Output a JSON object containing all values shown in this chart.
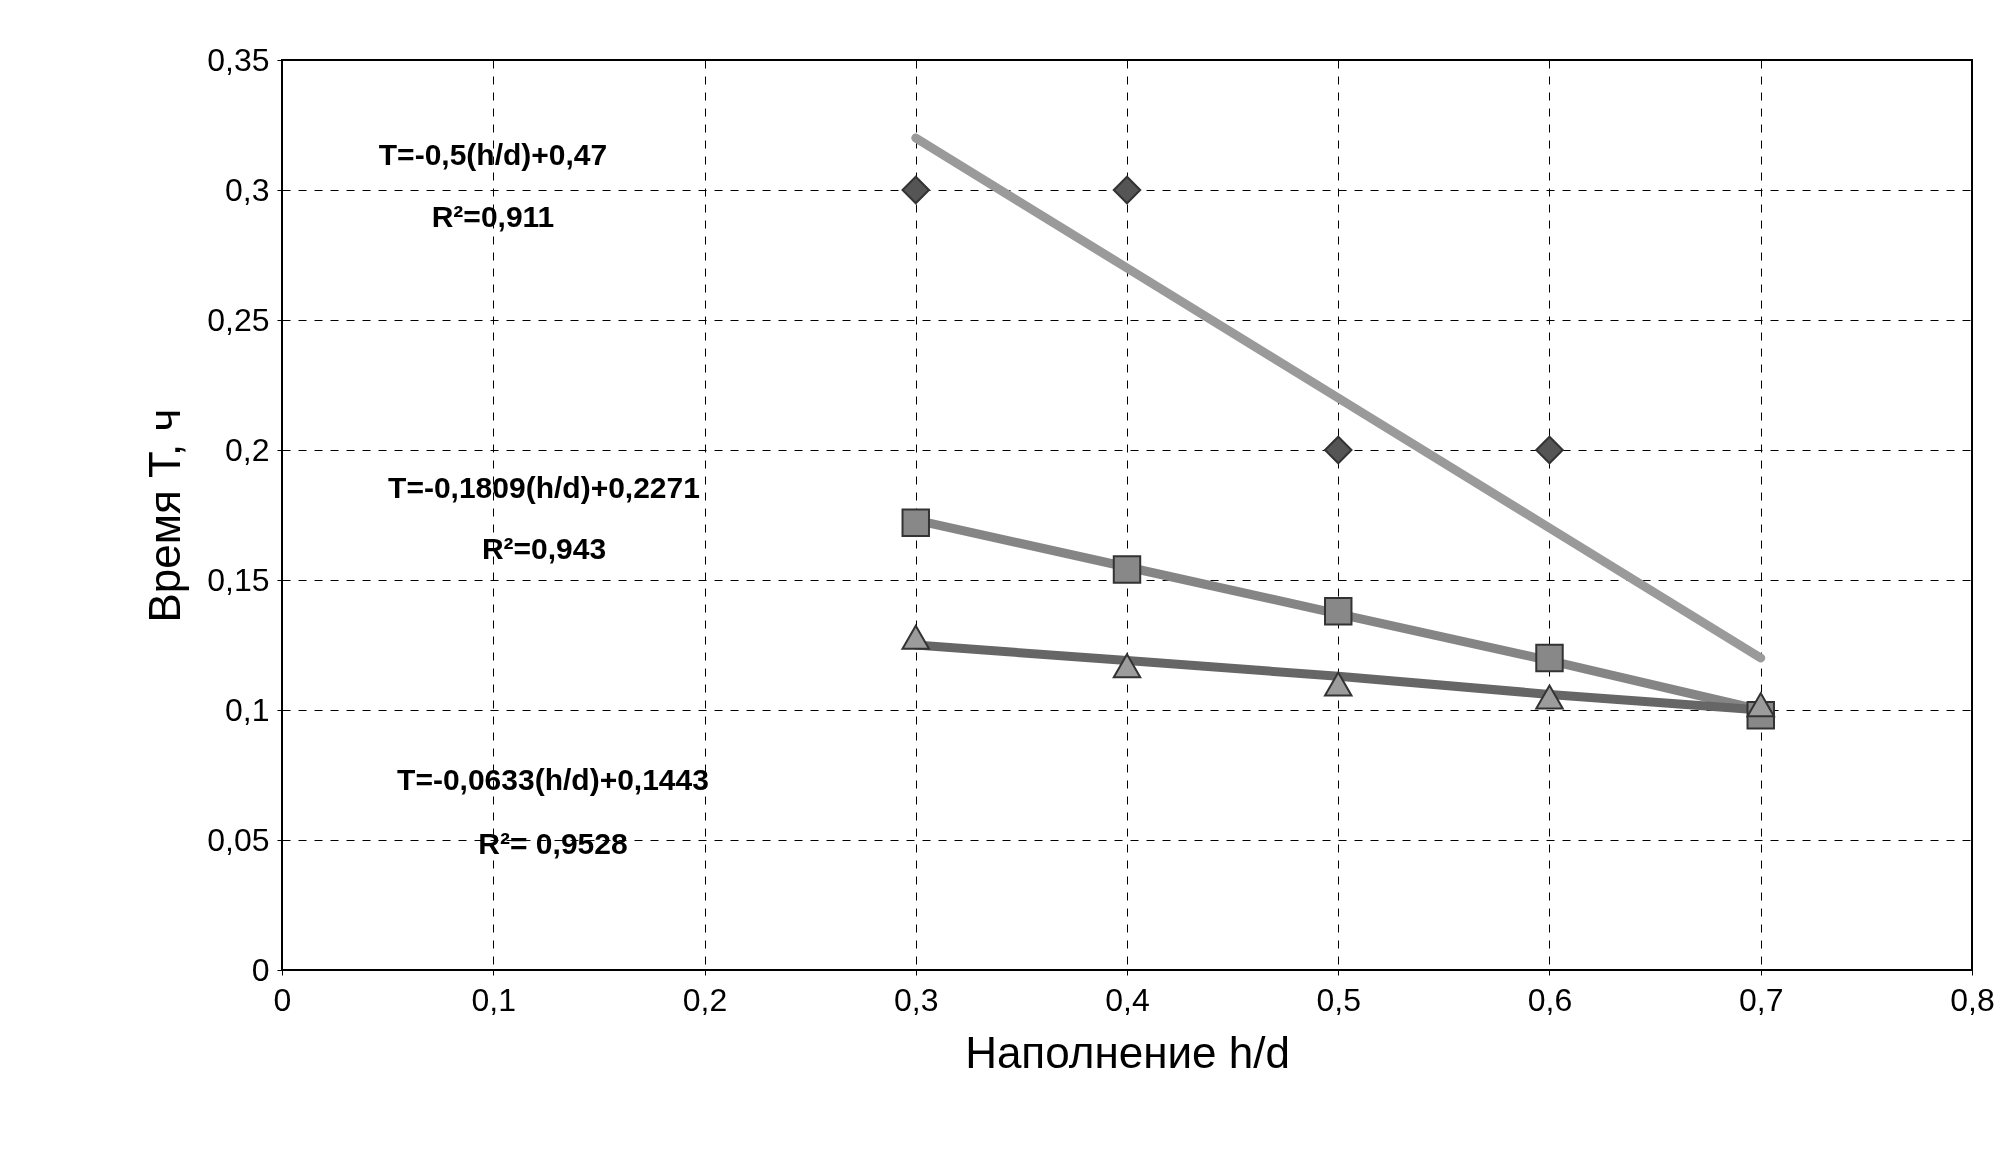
{
  "chart_data": {
    "type": "scatter",
    "xlabel": "Наполнение h/d",
    "ylabel": "Время T, ч",
    "xlim": [
      0,
      0.8
    ],
    "ylim": [
      0,
      0.35
    ],
    "xticks": [
      0,
      {
        "value": 0.1,
        "label": "0,1"
      },
      {
        "value": 0.2,
        "label": "0,2"
      },
      {
        "value": 0.3,
        "label": "0,3"
      },
      {
        "value": 0.4,
        "label": "0,4"
      },
      {
        "value": 0.5,
        "label": "0,5"
      },
      {
        "value": 0.6,
        "label": "0,6"
      },
      {
        "value": 0.7,
        "label": "0,7"
      },
      {
        "value": 0.8,
        "label": "0,8"
      }
    ],
    "yticks": [
      0,
      {
        "value": 0.05,
        "label": "0,05"
      },
      {
        "value": 0.1,
        "label": "0,1"
      },
      {
        "value": 0.15,
        "label": "0,15"
      },
      {
        "value": 0.2,
        "label": "0,2"
      },
      {
        "value": 0.25,
        "label": "0,25"
      },
      {
        "value": 0.3,
        "label": "0,3"
      },
      {
        "value": 0.35,
        "label": "0,35"
      }
    ],
    "grid": true,
    "x": [
      0.3,
      0.4,
      0.5,
      0.6,
      0.7
    ],
    "series": [
      {
        "type": "line",
        "color": "#9a9a9a",
        "values": [
          0.32,
          0.27,
          0.22,
          0.17,
          0.12
        ]
      },
      {
        "type": "line",
        "color": "#858585",
        "values": [
          0.173,
          0.155,
          0.137,
          0.119,
          0.1
        ]
      },
      {
        "type": "line",
        "color": "#666666",
        "values": [
          0.125,
          0.119,
          0.113,
          0.106,
          0.1
        ]
      },
      {
        "color": "#555555",
        "marker": "diamond",
        "values": [
          0.3,
          0.3,
          0.2,
          0.2,
          null
        ]
      },
      {
        "color": "#888888",
        "marker": "square",
        "values": [
          0.172,
          0.154,
          0.138,
          0.12,
          0.098
        ]
      },
      {
        "color": "#9c9c9c",
        "marker": "triangle",
        "values": [
          0.128,
          0.117,
          0.11,
          0.105,
          0.102
        ]
      }
    ],
    "annotations": [
      "T=-0,5(h/d)+0,47",
      "R²=0,911",
      "T=-0,1809(h/d)+0,2271",
      "R²=0,943",
      "T=-0,0633(h/d)+0,1443",
      "R²= 0,9528"
    ]
  }
}
